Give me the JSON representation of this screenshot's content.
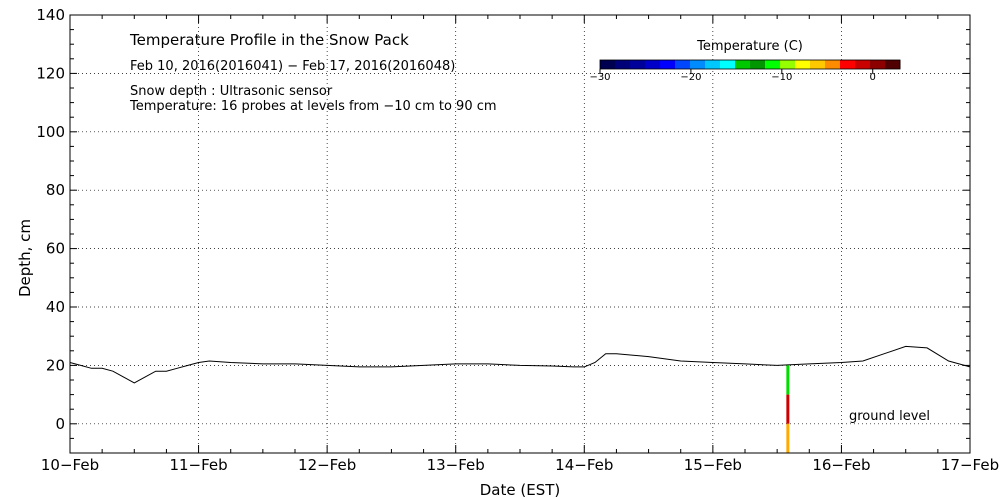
{
  "chart_data": {
    "type": "line",
    "title": "Temperature Profile in the Snow Pack",
    "subtitle": "Feb 10, 2016(2016041) − Feb 17, 2016(2016048)",
    "notes": [
      "Snow depth : Ultrasonic sensor",
      "Temperature: 16 probes at levels from −10 cm to 90 cm"
    ],
    "xlabel": "Date (EST)",
    "ylabel": "Depth, cm",
    "x_ticks": [
      "10−Feb",
      "11−Feb",
      "12−Feb",
      "13−Feb",
      "14−Feb",
      "15−Feb",
      "16−Feb",
      "17−Feb"
    ],
    "xlim": [
      "2016-02-10",
      "2016-02-17"
    ],
    "ylim": [
      -10,
      140
    ],
    "y_ticks": [
      0,
      20,
      40,
      60,
      80,
      100,
      120,
      140
    ],
    "grid": true,
    "annotation": "ground level",
    "colorbar": {
      "title": "Temperature (C)",
      "range": [
        -30,
        3
      ],
      "ticks": [
        -30,
        -20,
        -10,
        0
      ],
      "tick_labels": [
        "−30",
        "−20",
        "−10",
        "0"
      ],
      "colors": [
        "#000050",
        "#000078",
        "#00009a",
        "#0000c8",
        "#0000ff",
        "#0046ff",
        "#008cff",
        "#00c8ff",
        "#00ffff",
        "#00c800",
        "#009600",
        "#00ff00",
        "#96ff00",
        "#ffff00",
        "#ffc800",
        "#ff8c00",
        "#ff0000",
        "#c80000",
        "#8c0000",
        "#500000"
      ]
    },
    "series": [
      {
        "name": "Snow depth",
        "color": "#000000",
        "x": [
          "2016-02-10 00:00",
          "2016-02-10 02:00",
          "2016-02-10 04:00",
          "2016-02-10 06:00",
          "2016-02-10 08:00",
          "2016-02-10 10:00",
          "2016-02-10 12:00",
          "2016-02-10 14:00",
          "2016-02-10 16:00",
          "2016-02-10 18:00",
          "2016-02-10 20:00",
          "2016-02-10 22:00",
          "2016-02-11 00:00",
          "2016-02-11 02:00",
          "2016-02-11 06:00",
          "2016-02-11 12:00",
          "2016-02-11 18:00",
          "2016-02-12 00:00",
          "2016-02-12 06:00",
          "2016-02-12 12:00",
          "2016-02-12 18:00",
          "2016-02-13 00:00",
          "2016-02-13 06:00",
          "2016-02-13 12:00",
          "2016-02-13 18:00",
          "2016-02-13 22:00",
          "2016-02-14 00:00",
          "2016-02-14 02:00",
          "2016-02-14 04:00",
          "2016-02-14 06:00",
          "2016-02-14 12:00",
          "2016-02-14 18:00",
          "2016-02-15 00:00",
          "2016-02-15 06:00",
          "2016-02-15 12:00",
          "2016-02-15 18:00",
          "2016-02-16 00:00",
          "2016-02-16 04:00",
          "2016-02-16 08:00",
          "2016-02-16 12:00",
          "2016-02-16 16:00",
          "2016-02-16 20:00",
          "2016-02-17 00:00"
        ],
        "y": [
          21,
          20,
          19,
          19,
          18,
          16,
          14,
          16,
          18,
          18,
          19,
          20,
          21,
          21.5,
          21,
          20.5,
          20.5,
          20,
          19.5,
          19.5,
          20,
          20.5,
          20.5,
          20,
          19.8,
          19.5,
          19.5,
          21,
          24,
          24,
          23,
          21.5,
          21,
          20.5,
          20,
          20.5,
          21,
          21.5,
          24,
          26.5,
          26,
          21.5,
          19.5
        ]
      },
      {
        "name": "Probe temperatures (ground level column)",
        "x": [
          "2016-02-15 14:00"
        ],
        "levels": [
          {
            "from": 10,
            "to": 20,
            "color": "#00dd00"
          },
          {
            "from": 0,
            "to": 10,
            "color": "#cc0000"
          },
          {
            "from": -10,
            "to": 0,
            "color": "#ffaa00"
          }
        ]
      }
    ]
  }
}
